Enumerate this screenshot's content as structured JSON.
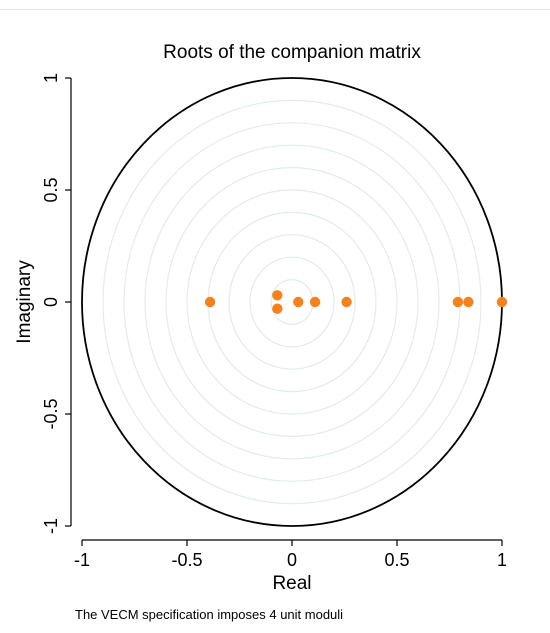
{
  "chart_data": {
    "type": "scatter",
    "title": "Roots of the companion matrix",
    "xlabel": "Real",
    "ylabel": "Imaginary",
    "note": "The VECM specification imposes 4 unit moduli",
    "xlim": [
      -1,
      1
    ],
    "ylim": [
      -1,
      1
    ],
    "xticks": [
      {
        "value": -1,
        "label": "-1"
      },
      {
        "value": -0.5,
        "label": "-0.5"
      },
      {
        "value": 0,
        "label": "0"
      },
      {
        "value": 0.5,
        "label": "0.5"
      },
      {
        "value": 1,
        "label": "1"
      }
    ],
    "yticks": [
      {
        "value": -1,
        "label": "-1"
      },
      {
        "value": -0.5,
        "label": "-0.5"
      },
      {
        "value": 0,
        "label": "0"
      },
      {
        "value": 0.5,
        "label": "0.5"
      },
      {
        "value": 1,
        "label": "1"
      }
    ],
    "unit_circle": true,
    "grid_circles": [
      0.1,
      0.2,
      0.3,
      0.4,
      0.5,
      0.6,
      0.7,
      0.8,
      0.9
    ],
    "points": [
      {
        "x": -0.39,
        "y": 0
      },
      {
        "x": -0.07,
        "y": 0.03
      },
      {
        "x": -0.07,
        "y": -0.03
      },
      {
        "x": 0.03,
        "y": 0
      },
      {
        "x": 0.11,
        "y": 0
      },
      {
        "x": 0.26,
        "y": 0
      },
      {
        "x": 0.79,
        "y": 0
      },
      {
        "x": 0.84,
        "y": 0
      },
      {
        "x": 1.0,
        "y": 0
      }
    ],
    "colors": {
      "points": "#f5821f",
      "unit_circle": "#000000",
      "grid_circles": "#e2ece9",
      "axis": "#000000"
    }
  }
}
